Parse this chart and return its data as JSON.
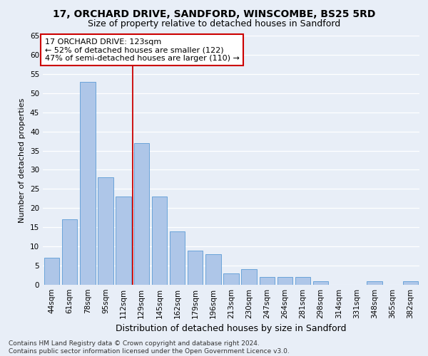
{
  "title1": "17, ORCHARD DRIVE, SANDFORD, WINSCOMBE, BS25 5RD",
  "title2": "Size of property relative to detached houses in Sandford",
  "xlabel": "Distribution of detached houses by size in Sandford",
  "ylabel": "Number of detached properties",
  "bar_labels": [
    "44sqm",
    "61sqm",
    "78sqm",
    "95sqm",
    "112sqm",
    "129sqm",
    "145sqm",
    "162sqm",
    "179sqm",
    "196sqm",
    "213sqm",
    "230sqm",
    "247sqm",
    "264sqm",
    "281sqm",
    "298sqm",
    "314sqm",
    "331sqm",
    "348sqm",
    "365sqm",
    "382sqm"
  ],
  "bar_values": [
    7,
    17,
    53,
    28,
    23,
    37,
    23,
    14,
    9,
    8,
    3,
    4,
    2,
    2,
    2,
    1,
    0,
    0,
    1,
    0,
    1
  ],
  "bar_color": "#aec6e8",
  "bar_edge_color": "#5b9bd5",
  "vline_x_index": 5,
  "vline_color": "#cc0000",
  "annotation_text": "17 ORCHARD DRIVE: 123sqm\n← 52% of detached houses are smaller (122)\n47% of semi-detached houses are larger (110) →",
  "annotation_box_color": "#ffffff",
  "annotation_box_edge_color": "#cc0000",
  "ylim": [
    0,
    65
  ],
  "yticks": [
    0,
    5,
    10,
    15,
    20,
    25,
    30,
    35,
    40,
    45,
    50,
    55,
    60,
    65
  ],
  "background_color": "#e8eef7",
  "grid_color": "#ffffff",
  "footer_line1": "Contains HM Land Registry data © Crown copyright and database right 2024.",
  "footer_line2": "Contains public sector information licensed under the Open Government Licence v3.0.",
  "title1_fontsize": 10,
  "title2_fontsize": 9,
  "xlabel_fontsize": 9,
  "ylabel_fontsize": 8,
  "tick_fontsize": 7.5,
  "annotation_fontsize": 8,
  "footer_fontsize": 6.5
}
